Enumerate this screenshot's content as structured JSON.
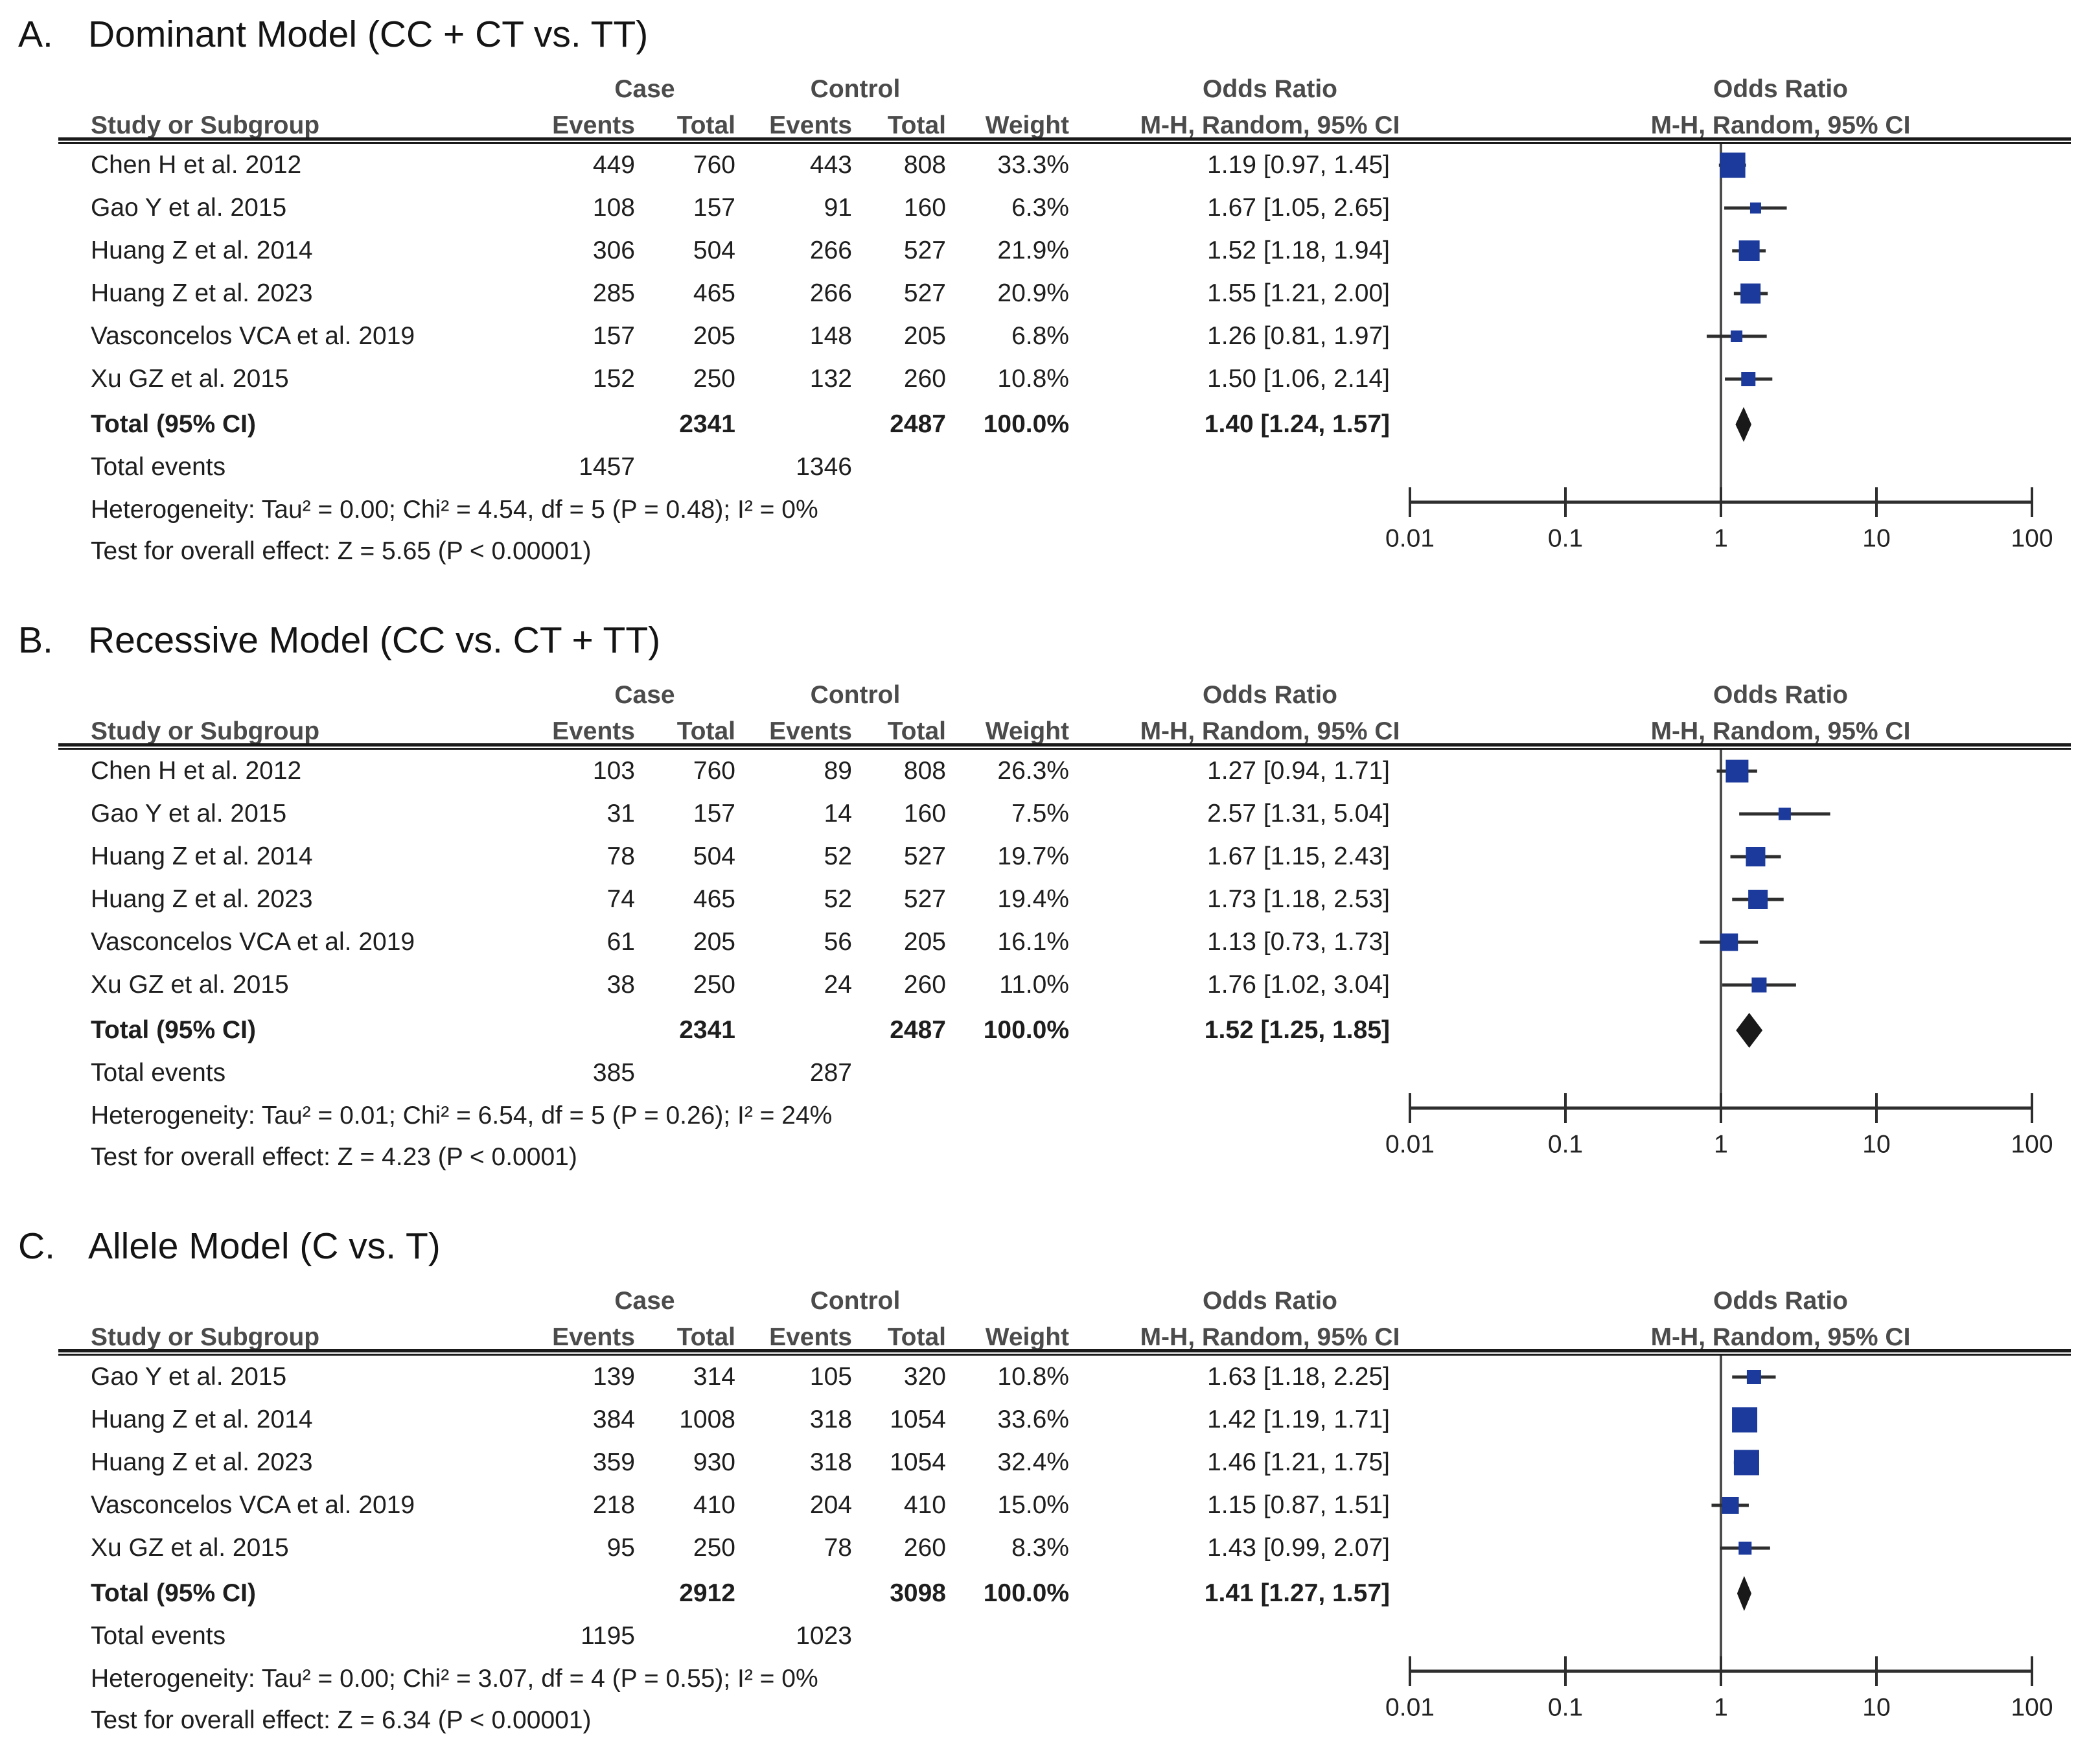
{
  "headers": {
    "case": "Case",
    "control": "Control",
    "odds_ratio": "Odds Ratio",
    "study_or_subgroup": "Study or Subgroup",
    "events": "Events",
    "total": "Total",
    "weight": "Weight",
    "mh_random_ci": "M-H, Random, 95% CI"
  },
  "axis": {
    "scale": "log",
    "min": 0.01,
    "max": 100,
    "values": [
      0.01,
      0.1,
      1,
      10,
      100
    ],
    "labels": [
      "0.01",
      "0.1",
      "1",
      "10",
      "100"
    ]
  },
  "colors": {
    "square": "#1B3A9B",
    "ci_line": "#2e2e2e",
    "diamond": "#191919",
    "null_line": "#4d4d4d",
    "header_text": "#4b4b4b",
    "body_text": "#1e1e1e"
  },
  "chart_data": [
    {
      "type": "forest",
      "letter": "A.",
      "title": "Dominant Model (CC + CT vs. TT)",
      "studies": [
        {
          "name": "Chen H et al. 2012",
          "case_events": "449",
          "case_total": "760",
          "control_events": "443",
          "control_total": "808",
          "weight": "33.3%",
          "weight_pct": 33.3,
          "or_label": "1.19 [0.97, 1.45]",
          "or": 1.19,
          "ci_low": 0.97,
          "ci_high": 1.45
        },
        {
          "name": "Gao Y et al. 2015",
          "case_events": "108",
          "case_total": "157",
          "control_events": "91",
          "control_total": "160",
          "weight": "6.3%",
          "weight_pct": 6.3,
          "or_label": "1.67 [1.05, 2.65]",
          "or": 1.67,
          "ci_low": 1.05,
          "ci_high": 2.65
        },
        {
          "name": "Huang Z et al. 2014",
          "case_events": "306",
          "case_total": "504",
          "control_events": "266",
          "control_total": "527",
          "weight": "21.9%",
          "weight_pct": 21.9,
          "or_label": "1.52 [1.18, 1.94]",
          "or": 1.52,
          "ci_low": 1.18,
          "ci_high": 1.94
        },
        {
          "name": "Huang Z et al. 2023",
          "case_events": "285",
          "case_total": "465",
          "control_events": "266",
          "control_total": "527",
          "weight": "20.9%",
          "weight_pct": 20.9,
          "or_label": "1.55 [1.21, 2.00]",
          "or": 1.55,
          "ci_low": 1.21,
          "ci_high": 2.0
        },
        {
          "name": "Vasconcelos VCA et al. 2019",
          "case_events": "157",
          "case_total": "205",
          "control_events": "148",
          "control_total": "205",
          "weight": "6.8%",
          "weight_pct": 6.8,
          "or_label": "1.26 [0.81, 1.97]",
          "or": 1.26,
          "ci_low": 0.81,
          "ci_high": 1.97
        },
        {
          "name": "Xu GZ et al. 2015",
          "case_events": "152",
          "case_total": "250",
          "control_events": "132",
          "control_total": "260",
          "weight": "10.8%",
          "weight_pct": 10.8,
          "or_label": "1.50 [1.06, 2.14]",
          "or": 1.5,
          "ci_low": 1.06,
          "ci_high": 2.14
        }
      ],
      "total_row": {
        "label": "Total (95% CI)",
        "case_total": "2341",
        "control_total": "2487",
        "weight": "100.0%",
        "or_label": "1.40 [1.24, 1.57]",
        "or": 1.4,
        "ci_low": 1.24,
        "ci_high": 1.57
      },
      "total_events": {
        "label": "Total events",
        "case": "1457",
        "control": "1346"
      },
      "heterogeneity": "Heterogeneity: Tau² = 0.00; Chi² = 4.54, df = 5 (P = 0.48); I² = 0%",
      "overall_effect": "Test for overall effect: Z = 5.65 (P < 0.00001)"
    },
    {
      "type": "forest",
      "letter": "B.",
      "title": "Recessive Model (CC vs. CT + TT)",
      "studies": [
        {
          "name": "Chen H et al. 2012",
          "case_events": "103",
          "case_total": "760",
          "control_events": "89",
          "control_total": "808",
          "weight": "26.3%",
          "weight_pct": 26.3,
          "or_label": "1.27 [0.94, 1.71]",
          "or": 1.27,
          "ci_low": 0.94,
          "ci_high": 1.71
        },
        {
          "name": "Gao Y et al. 2015",
          "case_events": "31",
          "case_total": "157",
          "control_events": "14",
          "control_total": "160",
          "weight": "7.5%",
          "weight_pct": 7.5,
          "or_label": "2.57 [1.31, 5.04]",
          "or": 2.57,
          "ci_low": 1.31,
          "ci_high": 5.04
        },
        {
          "name": "Huang Z et al. 2014",
          "case_events": "78",
          "case_total": "504",
          "control_events": "52",
          "control_total": "527",
          "weight": "19.7%",
          "weight_pct": 19.7,
          "or_label": "1.67 [1.15, 2.43]",
          "or": 1.67,
          "ci_low": 1.15,
          "ci_high": 2.43
        },
        {
          "name": "Huang Z et al. 2023",
          "case_events": "74",
          "case_total": "465",
          "control_events": "52",
          "control_total": "527",
          "weight": "19.4%",
          "weight_pct": 19.4,
          "or_label": "1.73 [1.18, 2.53]",
          "or": 1.73,
          "ci_low": 1.18,
          "ci_high": 2.53
        },
        {
          "name": "Vasconcelos VCA et al. 2019",
          "case_events": "61",
          "case_total": "205",
          "control_events": "56",
          "control_total": "205",
          "weight": "16.1%",
          "weight_pct": 16.1,
          "or_label": "1.13 [0.73, 1.73]",
          "or": 1.13,
          "ci_low": 0.73,
          "ci_high": 1.73
        },
        {
          "name": "Xu GZ et al. 2015",
          "case_events": "38",
          "case_total": "250",
          "control_events": "24",
          "control_total": "260",
          "weight": "11.0%",
          "weight_pct": 11.0,
          "or_label": "1.76 [1.02, 3.04]",
          "or": 1.76,
          "ci_low": 1.02,
          "ci_high": 3.04
        }
      ],
      "total_row": {
        "label": "Total (95% CI)",
        "case_total": "2341",
        "control_total": "2487",
        "weight": "100.0%",
        "or_label": "1.52 [1.25, 1.85]",
        "or": 1.52,
        "ci_low": 1.25,
        "ci_high": 1.85
      },
      "total_events": {
        "label": "Total events",
        "case": "385",
        "control": "287"
      },
      "heterogeneity": "Heterogeneity: Tau² = 0.01; Chi² = 6.54, df = 5 (P = 0.26); I² = 24%",
      "overall_effect": "Test for overall effect: Z = 4.23 (P < 0.0001)"
    },
    {
      "type": "forest",
      "letter": "C.",
      "title": "Allele Model (C vs. T)",
      "studies": [
        {
          "name": "Gao Y et al. 2015",
          "case_events": "139",
          "case_total": "314",
          "control_events": "105",
          "control_total": "320",
          "weight": "10.8%",
          "weight_pct": 10.8,
          "or_label": "1.63 [1.18, 2.25]",
          "or": 1.63,
          "ci_low": 1.18,
          "ci_high": 2.25
        },
        {
          "name": "Huang Z et al. 2014",
          "case_events": "384",
          "case_total": "1008",
          "control_events": "318",
          "control_total": "1054",
          "weight": "33.6%",
          "weight_pct": 33.6,
          "or_label": "1.42 [1.19, 1.71]",
          "or": 1.42,
          "ci_low": 1.19,
          "ci_high": 1.71
        },
        {
          "name": "Huang Z et al. 2023",
          "case_events": "359",
          "case_total": "930",
          "control_events": "318",
          "control_total": "1054",
          "weight": "32.4%",
          "weight_pct": 32.4,
          "or_label": "1.46 [1.21, 1.75]",
          "or": 1.46,
          "ci_low": 1.21,
          "ci_high": 1.75
        },
        {
          "name": "Vasconcelos VCA et al. 2019",
          "case_events": "218",
          "case_total": "410",
          "control_events": "204",
          "control_total": "410",
          "weight": "15.0%",
          "weight_pct": 15.0,
          "or_label": "1.15 [0.87, 1.51]",
          "or": 1.15,
          "ci_low": 0.87,
          "ci_high": 1.51
        },
        {
          "name": "Xu GZ et al. 2015",
          "case_events": "95",
          "case_total": "250",
          "control_events": "78",
          "control_total": "260",
          "weight": "8.3%",
          "weight_pct": 8.3,
          "or_label": "1.43 [0.99, 2.07]",
          "or": 1.43,
          "ci_low": 0.99,
          "ci_high": 2.07
        }
      ],
      "total_row": {
        "label": "Total (95% CI)",
        "case_total": "2912",
        "control_total": "3098",
        "weight": "100.0%",
        "or_label": "1.41 [1.27, 1.57]",
        "or": 1.41,
        "ci_low": 1.27,
        "ci_high": 1.57
      },
      "total_events": {
        "label": "Total events",
        "case": "1195",
        "control": "1023"
      },
      "heterogeneity": "Heterogeneity: Tau² = 0.00; Chi² = 3.07, df = 4 (P = 0.55); I² = 0%",
      "overall_effect": "Test for overall effect: Z = 6.34 (P < 0.00001)"
    }
  ]
}
